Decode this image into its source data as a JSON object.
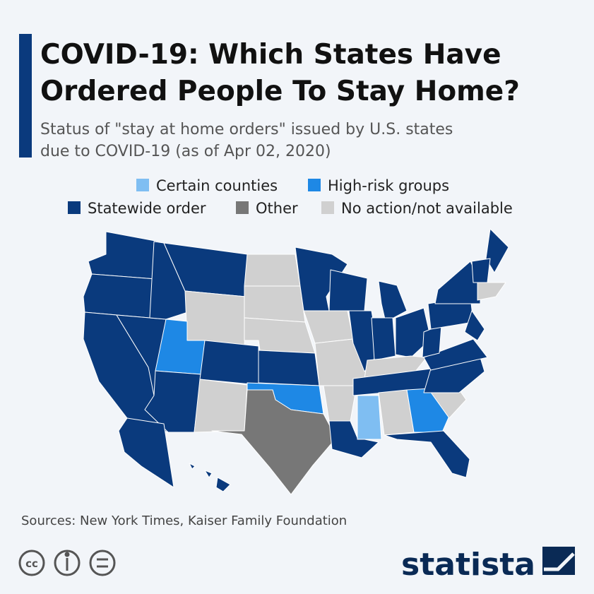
{
  "header": {
    "title_lines": [
      "COVID-19: Which States Have",
      "Ordered People To Stay Home?"
    ],
    "subtitle_lines": [
      "Status of \"stay at home orders\" issued by U.S. states",
      "due to COVID-19 (as of Apr 02, 2020)"
    ]
  },
  "legend": [
    {
      "label": "Certain counties",
      "color": "#7fbef2"
    },
    {
      "label": "High-risk groups",
      "color": "#1e88e5"
    },
    {
      "label": "Statewide order",
      "color": "#0a3a7d"
    },
    {
      "label": "Other",
      "color": "#777777"
    },
    {
      "label": "No action/not available",
      "color": "#d0d0d0"
    }
  ],
  "footer": {
    "source": "Sources: New York Times, Kaiser Family Foundation",
    "brand": "statista"
  }
}
